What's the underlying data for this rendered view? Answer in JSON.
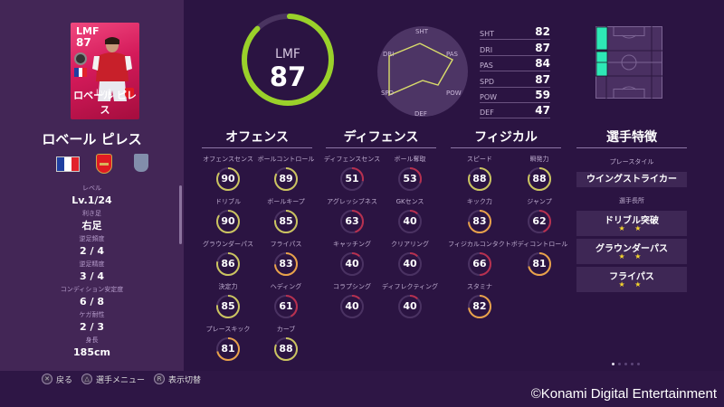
{
  "card": {
    "position": "LMF",
    "overall": "87",
    "level_label": "Lv.1",
    "name": "ロベール ピレス",
    "colors": {
      "card_top": "#f0487f",
      "card_bottom": "#a50d3e"
    }
  },
  "player": {
    "name": "ロベール ピレス",
    "nationality_icon": "france-flag-icon",
    "club_icon": "arsenal-crest-icon",
    "league_icon": "league-badge-icon"
  },
  "info": [
    {
      "label": "レベル",
      "value": "Lv.1/24"
    },
    {
      "label": "利き足",
      "value": "右足"
    },
    {
      "label": "逆足頻度",
      "value": "2 / 4"
    },
    {
      "label": "逆足精度",
      "value": "3 / 4"
    },
    {
      "label": "コンディション安定度",
      "value": "6 / 8"
    },
    {
      "label": "ケガ耐性",
      "value": "2 / 3"
    },
    {
      "label": "身長",
      "value": "185cm"
    }
  ],
  "overall": {
    "position": "LMF",
    "value": "87",
    "ring_color": "#9ad12a"
  },
  "radar": {
    "labels": [
      "SHT",
      "PAS",
      "POW",
      "DEF",
      "SPD",
      "DRI"
    ],
    "line_color": "#d9dc6a"
  },
  "stats": [
    {
      "key": "SHT",
      "value": "82"
    },
    {
      "key": "DRI",
      "value": "87"
    },
    {
      "key": "PAS",
      "value": "84"
    },
    {
      "key": "SPD",
      "value": "87"
    },
    {
      "key": "POW",
      "value": "59"
    },
    {
      "key": "DEF",
      "value": "47"
    }
  ],
  "pitch": {
    "highlight_color": "#2ee8b6",
    "highlighted_zones": [
      "left-attack",
      "left-mid-upper",
      "left-mid-lower"
    ]
  },
  "sections": {
    "offense": {
      "title": "オフェンス",
      "items": [
        {
          "label": "オフェンスセンス",
          "value": "90",
          "color": "#cbc460"
        },
        {
          "label": "ボールコントロール",
          "value": "89",
          "color": "#cbc460"
        },
        {
          "label": "ドリブル",
          "value": "90",
          "color": "#cbc460"
        },
        {
          "label": "ボールキープ",
          "value": "85",
          "color": "#cbc460"
        },
        {
          "label": "グラウンダーパス",
          "value": "86",
          "color": "#cbc460"
        },
        {
          "label": "フライパス",
          "value": "83",
          "color": "#e9a24a"
        },
        {
          "label": "決定力",
          "value": "85",
          "color": "#cbc460"
        },
        {
          "label": "ヘディング",
          "value": "61",
          "color": "#b8304f"
        },
        {
          "label": "プレースキック",
          "value": "81",
          "color": "#e9a24a"
        },
        {
          "label": "カーブ",
          "value": "88",
          "color": "#cbc460"
        }
      ]
    },
    "defense": {
      "title": "ディフェンス",
      "items": [
        {
          "label": "ディフェンスセンス",
          "value": "51",
          "color": "#b8304f"
        },
        {
          "label": "ボール奪取",
          "value": "53",
          "color": "#b8304f"
        },
        {
          "label": "アグレッシブネス",
          "value": "63",
          "color": "#b8304f"
        },
        {
          "label": "GKセンス",
          "value": "40",
          "color": "#b8304f"
        },
        {
          "label": "キャッチング",
          "value": "40",
          "color": "#b8304f"
        },
        {
          "label": "クリアリング",
          "value": "40",
          "color": "#b8304f"
        },
        {
          "label": "コラプシング",
          "value": "40",
          "color": "#b8304f"
        },
        {
          "label": "ディフレクティング",
          "value": "40",
          "color": "#b8304f"
        }
      ]
    },
    "physical": {
      "title": "フィジカル",
      "items": [
        {
          "label": "スピード",
          "value": "88",
          "color": "#cbc460"
        },
        {
          "label": "瞬発力",
          "value": "88",
          "color": "#cbc460"
        },
        {
          "label": "キック力",
          "value": "83",
          "color": "#e9a24a"
        },
        {
          "label": "ジャンプ",
          "value": "62",
          "color": "#b8304f"
        },
        {
          "label": "フィジカルコンタクト",
          "value": "66",
          "color": "#b8304f"
        },
        {
          "label": "ボディコントロール",
          "value": "81",
          "color": "#e9a24a"
        },
        {
          "label": "スタミナ",
          "value": "82",
          "color": "#e9a24a"
        }
      ]
    }
  },
  "traits": {
    "title": "選手特徴",
    "playstyle_label": "プレースタイル",
    "playstyle": "ウイングストライカー",
    "skills_label": "選手長所",
    "skills": [
      {
        "name": "ドリブル突破",
        "stars": "★ ★"
      },
      {
        "name": "グラウンダーパス",
        "stars": "★ ★"
      },
      {
        "name": "フライパス",
        "stars": "★ ★"
      }
    ]
  },
  "pager": {
    "total": 5,
    "active": 0
  },
  "controls": [
    {
      "icon": "✕",
      "label": "戻る"
    },
    {
      "icon": "△",
      "label": "選手メニュー"
    },
    {
      "icon": "R",
      "label": "表示切替"
    }
  ],
  "copyright": "©Konami Digital Entertainment"
}
